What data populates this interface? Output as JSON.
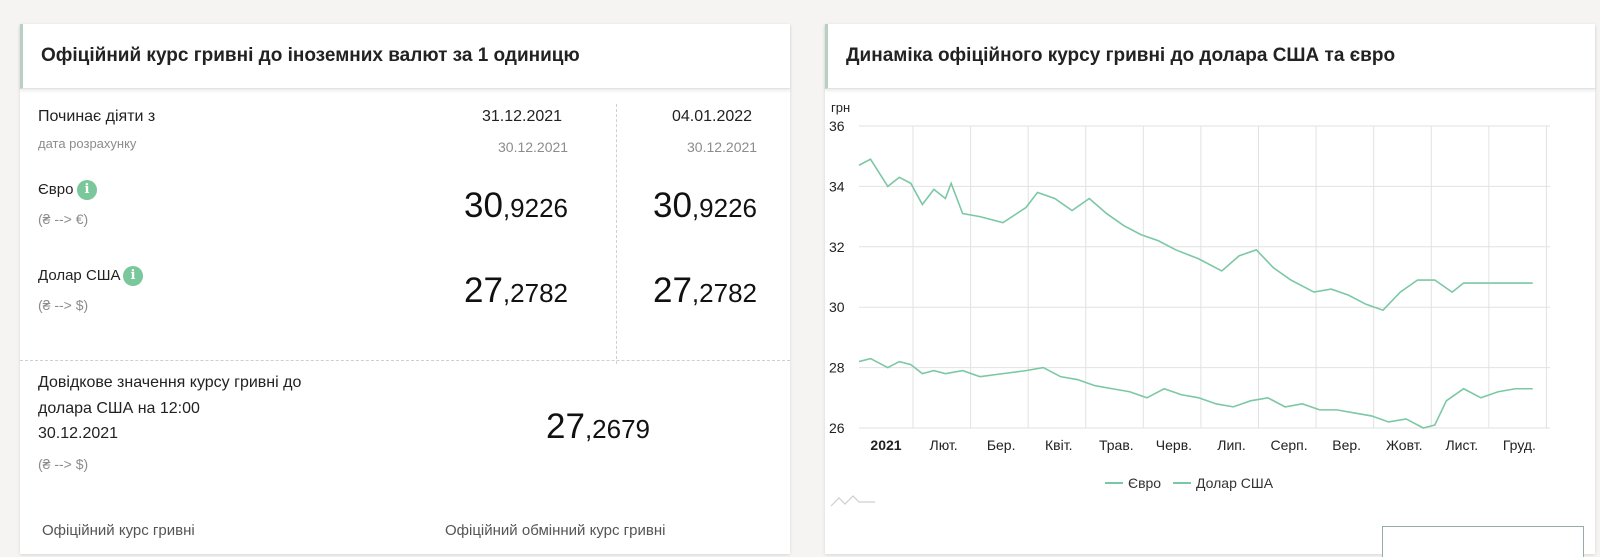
{
  "rates_card": {
    "title": "Офіційний курс гривні до іноземних валют за 1 одиницю",
    "effective_label": "Починає діяти з",
    "calc_date_label": "дата розрахунку",
    "columns": [
      {
        "effective_date": "31.12.2021",
        "calc_date": "30.12.2021"
      },
      {
        "effective_date": "04.01.2022",
        "calc_date": "30.12.2021"
      }
    ],
    "currencies": [
      {
        "name": "Євро",
        "direction": "(₴ --> €)",
        "int": [
          "30",
          "30"
        ],
        "frac": [
          ",9226",
          ",9226"
        ]
      },
      {
        "name": "Долар США",
        "direction": "(₴ --> $)",
        "int": [
          "27",
          "27"
        ],
        "frac": [
          ",2782",
          ",2782"
        ]
      }
    ],
    "reference": {
      "label_line1": "Довідкове значення курсу гривні до",
      "label_line2": "долара США на 12:00",
      "date": "30.12.2021",
      "direction": "(₴ --> $)",
      "int": "27",
      "frac": ",2679"
    },
    "info_icon": "i"
  },
  "chart_card": {
    "title": "Динаміка офіційного курсу гривні до долара США та євро"
  },
  "colors": {
    "accent_green": "#2f7d4f",
    "line_color": "#7cc8a4",
    "info_icon": "#79c79b"
  },
  "chart_data": {
    "type": "line",
    "ylabel": "грн",
    "ylim": [
      26,
      36
    ],
    "yticks": [
      "26",
      "28",
      "30",
      "32",
      "34",
      "36"
    ],
    "xticks": [
      "2021",
      "Лют.",
      "Бер.",
      "Квіт.",
      "Трав.",
      "Черв.",
      "Лип.",
      "Серп.",
      "Вер.",
      "Жовт.",
      "Лист.",
      "Груд."
    ],
    "x_month_positions": [
      0,
      1,
      2,
      3,
      4,
      5,
      6,
      7,
      8,
      9,
      10,
      11
    ],
    "grid": true,
    "legend_position": "bottom",
    "series": [
      {
        "name": "Євро",
        "x": [
          0,
          0.2,
          0.5,
          0.7,
          0.9,
          1.1,
          1.3,
          1.5,
          1.6,
          1.8,
          2.1,
          2.5,
          2.9,
          3.1,
          3.4,
          3.7,
          4.0,
          4.3,
          4.6,
          4.9,
          5.2,
          5.5,
          5.9,
          6.3,
          6.6,
          6.9,
          7.2,
          7.5,
          7.7,
          7.9,
          8.2,
          8.5,
          8.8,
          9.1,
          9.4,
          9.7,
          10.0,
          10.3,
          10.5,
          10.8,
          11.1,
          11.4,
          11.7
        ],
        "y": [
          34.7,
          34.9,
          34.0,
          34.3,
          34.1,
          33.4,
          33.9,
          33.6,
          34.1,
          33.1,
          33.0,
          32.8,
          33.3,
          33.8,
          33.6,
          33.2,
          33.6,
          33.1,
          32.7,
          32.4,
          32.2,
          31.9,
          31.6,
          31.2,
          31.7,
          31.9,
          31.3,
          30.9,
          30.7,
          30.5,
          30.6,
          30.4,
          30.1,
          29.9,
          30.5,
          30.9,
          30.9,
          30.5,
          30.8,
          30.8,
          30.8,
          30.8,
          30.8
        ],
        "color": "#7cc8a4"
      },
      {
        "name": "Долар США",
        "x": [
          0,
          0.2,
          0.5,
          0.7,
          0.9,
          1.1,
          1.3,
          1.5,
          1.8,
          2.1,
          2.5,
          2.9,
          3.2,
          3.5,
          3.8,
          4.1,
          4.4,
          4.7,
          5.0,
          5.3,
          5.6,
          5.9,
          6.2,
          6.5,
          6.8,
          7.1,
          7.4,
          7.7,
          8.0,
          8.3,
          8.6,
          8.9,
          9.2,
          9.5,
          9.8,
          10.0,
          10.2,
          10.5,
          10.8,
          11.1,
          11.4,
          11.7
        ],
        "y": [
          28.2,
          28.3,
          28.0,
          28.2,
          28.1,
          27.8,
          27.9,
          27.8,
          27.9,
          27.7,
          27.8,
          27.9,
          28.0,
          27.7,
          27.6,
          27.4,
          27.3,
          27.2,
          27.0,
          27.3,
          27.1,
          27.0,
          26.8,
          26.7,
          26.9,
          27.0,
          26.7,
          26.8,
          26.6,
          26.6,
          26.5,
          26.4,
          26.2,
          26.3,
          26.0,
          26.1,
          26.9,
          27.3,
          27.0,
          27.2,
          27.3,
          27.3
        ],
        "color": "#7cc8a4"
      }
    ]
  },
  "bottom_links": [
    "Офіційний курс гривні",
    "Офіційний обмінний курс гривні"
  ]
}
